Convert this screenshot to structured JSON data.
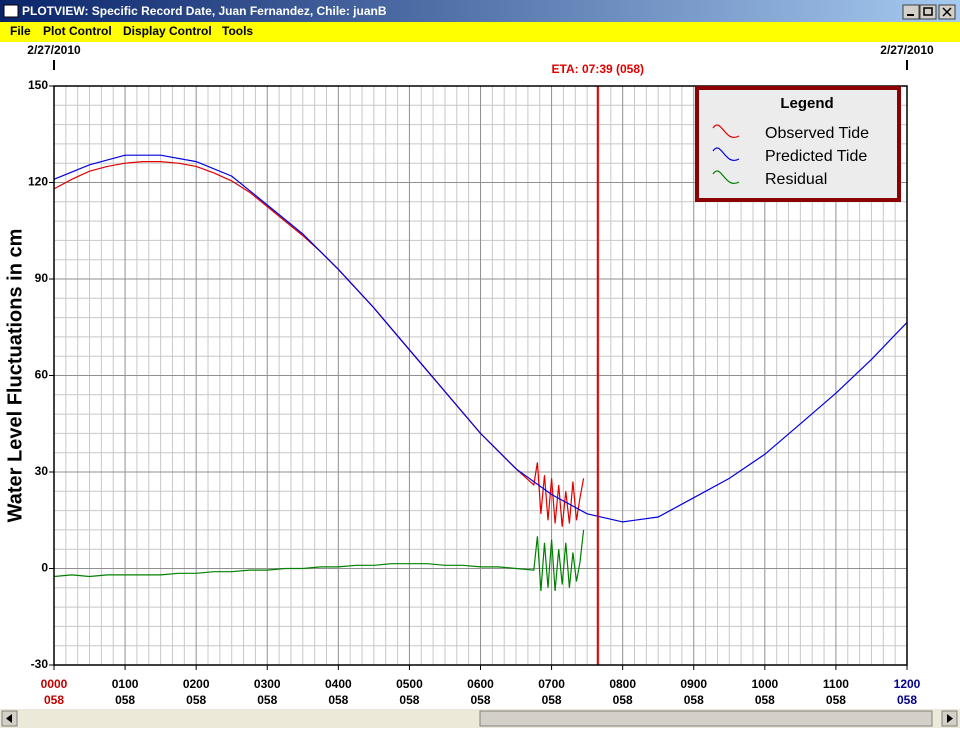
{
  "window": {
    "title": "PLOTVIEW: Specific Record Date, Juan Fernandez, Chile: juanB",
    "menu": [
      "File",
      "Plot Control",
      "Display Control",
      "Tools"
    ]
  },
  "chart_data": {
    "type": "line",
    "ylabel": "Water Level Fluctuations in cm",
    "date_labels": [
      "2/27/2010",
      "2/27/2010"
    ],
    "xlim": [
      0,
      12
    ],
    "ylim": [
      -30,
      150
    ],
    "yticks": [
      -30,
      0,
      30,
      60,
      90,
      120,
      150
    ],
    "xticks": [
      {
        "value": 0,
        "label": "0000"
      },
      {
        "value": 1,
        "label": "0100"
      },
      {
        "value": 2,
        "label": "0200"
      },
      {
        "value": 3,
        "label": "0300"
      },
      {
        "value": 4,
        "label": "0400"
      },
      {
        "value": 5,
        "label": "0500"
      },
      {
        "value": 6,
        "label": "0600"
      },
      {
        "value": 7,
        "label": "0700"
      },
      {
        "value": 8,
        "label": "0800"
      },
      {
        "value": 9,
        "label": "0900"
      },
      {
        "value": 10,
        "label": "1000"
      },
      {
        "value": 11,
        "label": "1100"
      },
      {
        "value": 12,
        "label": "1200"
      }
    ],
    "xtick_day_labels": [
      "058",
      "058",
      "058",
      "058",
      "058",
      "058",
      "058",
      "058",
      "058",
      "058",
      "058",
      "058",
      "058"
    ],
    "grid": true,
    "eta": {
      "x": 7.65,
      "label": "ETA: 07:39 (058)",
      "color": "#e00000"
    },
    "legend": {
      "title": "Legend",
      "position": "top-right"
    },
    "series": [
      {
        "name": "Observed Tide",
        "color": "#e00000",
        "x": [
          0,
          0.25,
          0.5,
          0.75,
          1,
          1.25,
          1.5,
          1.75,
          2,
          2.25,
          2.5,
          2.75,
          3,
          3.25,
          3.5,
          3.75,
          4,
          4.25,
          4.5,
          4.75,
          5,
          5.25,
          5.5,
          5.75,
          6,
          6.25,
          6.5,
          6.75,
          6.8,
          6.85,
          6.9,
          6.95,
          7,
          7.05,
          7.1,
          7.15,
          7.2,
          7.25,
          7.3,
          7.35,
          7.4,
          7.45
        ],
        "values": [
          118,
          121,
          123.5,
          125,
          126,
          126.5,
          126.5,
          126,
          125,
          123,
          120.5,
          117,
          112.5,
          108,
          103.5,
          98.5,
          93,
          87,
          81,
          74.5,
          68,
          61.5,
          55,
          48.5,
          42,
          36.5,
          31,
          26,
          33,
          17,
          29,
          15,
          28,
          14,
          26,
          13,
          24,
          14,
          27,
          15,
          22,
          28
        ]
      },
      {
        "name": "Predicted Tide",
        "color": "#0000e0",
        "x": [
          0,
          0.5,
          1,
          1.5,
          2,
          2.5,
          3,
          3.5,
          4,
          4.5,
          5,
          5.5,
          6,
          6.5,
          7,
          7.5,
          8,
          8.5,
          9,
          9.5,
          10,
          10.5,
          11,
          11.5,
          12
        ],
        "values": [
          121,
          125.5,
          128.5,
          128.5,
          126.5,
          122,
          113,
          104,
          93,
          81,
          68,
          55,
          42,
          31,
          23,
          17,
          14.5,
          16,
          22,
          28,
          35.5,
          45,
          54.5,
          65,
          76.5
        ]
      },
      {
        "name": "Residual",
        "color": "#008000",
        "x": [
          0,
          0.25,
          0.5,
          0.75,
          1,
          1.25,
          1.5,
          1.75,
          2,
          2.25,
          2.5,
          2.75,
          3,
          3.25,
          3.5,
          3.75,
          4,
          4.25,
          4.5,
          4.75,
          5,
          5.25,
          5.5,
          5.75,
          6,
          6.25,
          6.5,
          6.75,
          6.8,
          6.85,
          6.9,
          6.95,
          7,
          7.05,
          7.1,
          7.15,
          7.2,
          7.25,
          7.3,
          7.35,
          7.4,
          7.45
        ],
        "values": [
          -2.5,
          -2,
          -2.5,
          -2,
          -2,
          -2,
          -2,
          -1.5,
          -1.5,
          -1,
          -1,
          -0.5,
          -0.5,
          0,
          0,
          0.5,
          0.5,
          1,
          1,
          1.5,
          1.5,
          1.5,
          1,
          1,
          0.5,
          0.5,
          0,
          -0.5,
          10,
          -7,
          8,
          -6,
          9,
          -7,
          6,
          -5,
          8,
          -6,
          5,
          -4,
          2,
          12
        ]
      }
    ]
  }
}
